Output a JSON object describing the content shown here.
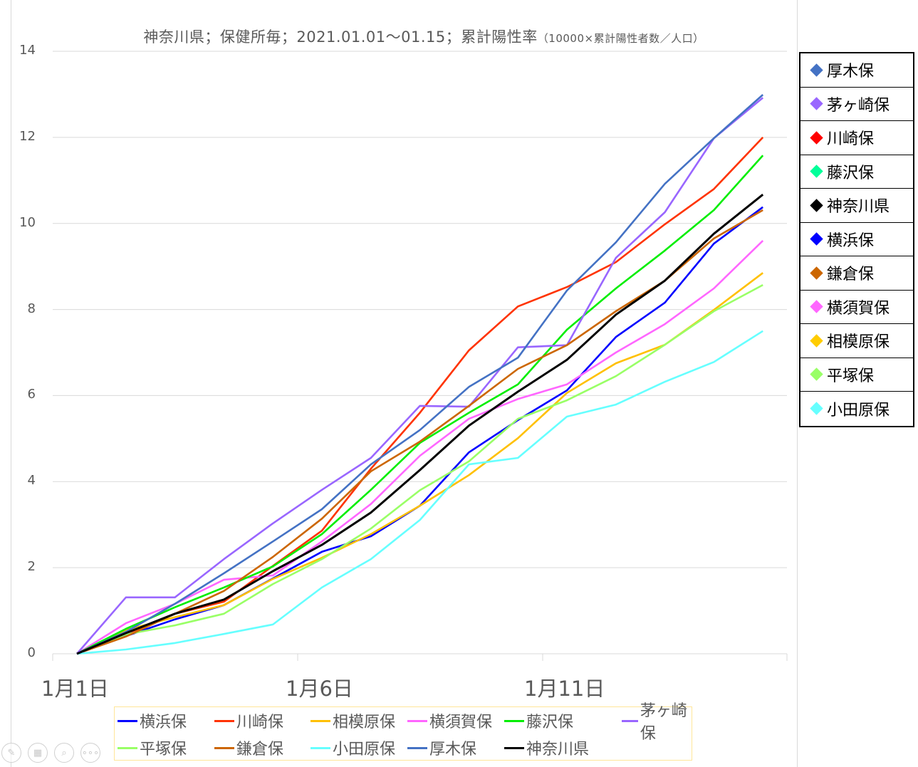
{
  "chart_data": {
    "type": "line",
    "title": "神奈川県；保健所毎；2021.01.01〜01.15；累計陽性率",
    "title_suffix": "（10000×累計陽性者数／人口）",
    "xlabel": "",
    "ylabel": "",
    "ylim": [
      0,
      14
    ],
    "yticks": [
      0,
      2,
      4,
      6,
      8,
      10,
      12,
      14
    ],
    "grid": true,
    "legend_position": "bottom + right",
    "x": [
      "1月1日",
      "1月2日",
      "1月3日",
      "1月4日",
      "1月5日",
      "1月6日",
      "1月7日",
      "1月8日",
      "1月9日",
      "1月10日",
      "1月11日",
      "1月12日",
      "1月13日",
      "1月14日",
      "1月15日"
    ],
    "x_tick_labels": [
      "1月1日",
      "1月6日",
      "1月11日"
    ],
    "series": [
      {
        "name": "横浜保",
        "color": "#0000FF",
        "values": [
          0,
          0.41,
          0.8,
          1.13,
          1.75,
          2.37,
          2.73,
          3.44,
          4.68,
          5.43,
          6.12,
          7.36,
          8.16,
          9.53,
          10.38
        ]
      },
      {
        "name": "川崎保",
        "color": "#FF3300",
        "values": [
          0,
          0.46,
          0.93,
          1.21,
          2.04,
          2.86,
          4.3,
          5.6,
          7.05,
          8.07,
          8.52,
          9.1,
          9.98,
          10.8,
          12.0
        ]
      },
      {
        "name": "相模原保",
        "color": "#FFC000",
        "values": [
          0,
          0.55,
          0.85,
          1.13,
          1.74,
          2.23,
          2.78,
          3.44,
          4.15,
          5.01,
          6.06,
          6.75,
          7.18,
          7.99,
          8.85
        ]
      },
      {
        "name": "横須賀保",
        "color": "#FF66FF",
        "values": [
          0,
          0.71,
          1.16,
          1.72,
          1.82,
          2.61,
          3.48,
          4.6,
          5.46,
          5.92,
          6.26,
          7.0,
          7.66,
          8.49,
          9.6
        ]
      },
      {
        "name": "藤沢保",
        "color": "#00EE00",
        "values": [
          0,
          0.58,
          1.08,
          1.54,
          2.03,
          2.78,
          3.81,
          4.9,
          5.6,
          6.26,
          7.53,
          8.49,
          9.37,
          10.31,
          11.58
        ]
      },
      {
        "name": "茅ヶ崎保",
        "color": "#9966FF",
        "values": [
          0,
          1.31,
          1.31,
          2.2,
          3.03,
          3.81,
          4.55,
          5.76,
          5.74,
          7.12,
          7.17,
          9.2,
          10.26,
          11.98,
          12.92
        ]
      },
      {
        "name": "平塚保",
        "color": "#99FF66",
        "values": [
          0,
          0.45,
          0.66,
          0.93,
          1.62,
          2.2,
          2.91,
          3.8,
          4.47,
          5.46,
          5.89,
          6.45,
          7.18,
          7.96,
          8.57
        ]
      },
      {
        "name": "鎌倉保",
        "color": "#CC6600",
        "values": [
          0,
          0.4,
          0.93,
          1.46,
          2.25,
          3.14,
          4.24,
          4.93,
          5.76,
          6.62,
          7.17,
          7.96,
          8.67,
          9.65,
          10.31
        ]
      },
      {
        "name": "小田原保",
        "color": "#66FFFF",
        "values": [
          0,
          0.1,
          0.25,
          0.46,
          0.68,
          1.54,
          2.2,
          3.11,
          4.4,
          4.55,
          5.51,
          5.79,
          6.32,
          6.78,
          7.5
        ]
      },
      {
        "name": "厚木保",
        "color": "#4472C4",
        "values": [
          0,
          0.51,
          1.16,
          1.87,
          2.61,
          3.36,
          4.4,
          5.2,
          6.2,
          6.88,
          8.44,
          9.56,
          10.92,
          11.98,
          12.99
        ]
      },
      {
        "name": "神奈川県",
        "color": "#000000",
        "values": [
          0,
          0.48,
          0.93,
          1.26,
          1.92,
          2.53,
          3.28,
          4.27,
          5.3,
          6.09,
          6.83,
          7.88,
          8.67,
          9.76,
          10.67
        ]
      }
    ]
  },
  "title": {
    "main": "神奈川県；保健所毎；2021.01.01〜01.15；累計陽性率",
    "suffix": "（10000×累計陽性者数／人口）"
  },
  "y_axis": {
    "ticks": [
      "14",
      "12",
      "10",
      "8",
      "6",
      "4",
      "2",
      "0"
    ]
  },
  "x_axis": {
    "ticks": [
      "1月1日",
      "1月6日",
      "1月11日"
    ]
  },
  "bottom_legend": {
    "row1": [
      {
        "label": "横浜保",
        "color": "#0000FF"
      },
      {
        "label": "川崎保",
        "color": "#FF3300"
      },
      {
        "label": "相模原保",
        "color": "#FFC000"
      },
      {
        "label": "横須賀保",
        "color": "#FF66FF"
      },
      {
        "label": "藤沢保",
        "color": "#00EE00"
      },
      {
        "label": "茅ヶ崎保",
        "color": "#9966FF"
      }
    ],
    "row2": [
      {
        "label": "平塚保",
        "color": "#99FF66"
      },
      {
        "label": "鎌倉保",
        "color": "#CC6600"
      },
      {
        "label": "小田原保",
        "color": "#66FFFF"
      },
      {
        "label": "厚木保",
        "color": "#4472C4"
      },
      {
        "label": "神奈川県",
        "color": "#000000"
      }
    ]
  },
  "side_legend": [
    {
      "label": "厚木保",
      "color": "#4472C4"
    },
    {
      "label": "茅ヶ崎保",
      "color": "#9966FF"
    },
    {
      "label": "川崎保",
      "color": "#FF0000"
    },
    {
      "label": "藤沢保",
      "color": "#00FF99"
    },
    {
      "label": "神奈川県",
      "color": "#000000"
    },
    {
      "label": "横浜保",
      "color": "#0000FF"
    },
    {
      "label": "鎌倉保",
      "color": "#CC6600"
    },
    {
      "label": "横須賀保",
      "color": "#FF66FF"
    },
    {
      "label": "相模原保",
      "color": "#FFCC00"
    },
    {
      "label": "平塚保",
      "color": "#99FF66"
    },
    {
      "label": "小田原保",
      "color": "#66FFFF"
    }
  ],
  "toolbar": {
    "pen": "✎",
    "slides": "▦",
    "zoom": "⌕",
    "more": "∘∘∘"
  }
}
